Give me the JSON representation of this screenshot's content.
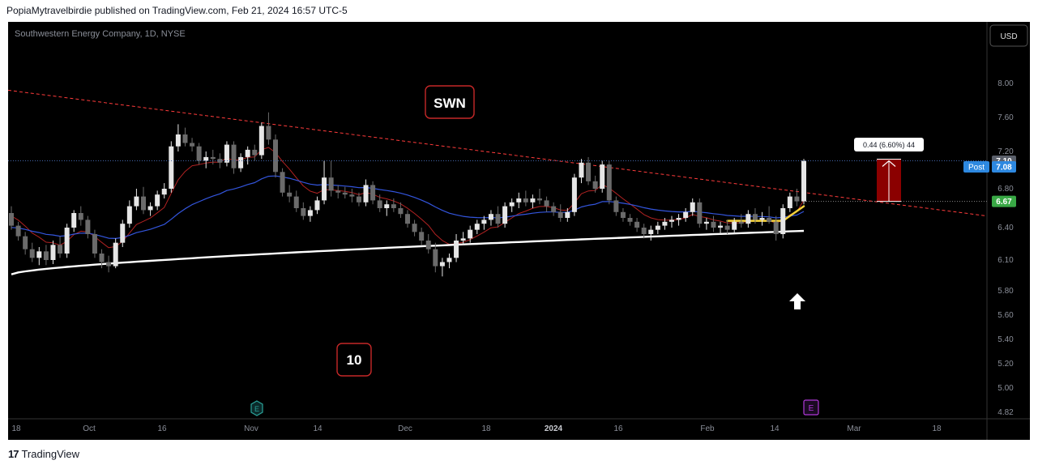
{
  "header": {
    "text": "PopiaMytravelbirdie published on TradingView.com, Feb 21, 2024 16:57 UTC-5"
  },
  "footer": {
    "logo": "17",
    "brand": "TradingView"
  },
  "chart": {
    "symbol_line": "Southwestern Energy Company, 1D, NYSE",
    "currency": "USD",
    "ticker_label": "SWN",
    "count_label": "10",
    "measure_label": "0.44 (6.60%) 44",
    "price_badge": "7.10",
    "post_label": "Post",
    "post_badge": "7.08",
    "base_badge": "6.67",
    "earnings_marker": "E"
  },
  "chart_data": {
    "type": "candlestick",
    "price_axis": {
      "ticks": [
        "8.00",
        "7.60",
        "7.20",
        "6.80",
        "6.40",
        "6.10",
        "5.80",
        "5.60",
        "5.40",
        "5.20",
        "5.00",
        "4.82"
      ]
    },
    "time_axis": {
      "ticks": [
        "18",
        "Oct",
        "16",
        "Nov",
        "14",
        "Dec",
        "18",
        "2024",
        "16",
        "Feb",
        "14",
        "Mar",
        "18"
      ]
    },
    "colors": {
      "up": "#e6e6e6",
      "down": "#6b6b6b",
      "trend": "#ff3b3b",
      "ema_short": "#b22222",
      "ema_mid": "#3355dd",
      "ema_long": "#ffffff",
      "highlight": "#f5d23b",
      "measure_box": "#8b0000",
      "post_badge": "#2d88e0",
      "base_badge": "#39a845"
    },
    "candles": [
      [
        6.55,
        6.62,
        6.38,
        6.42
      ],
      [
        6.42,
        6.46,
        6.28,
        6.32
      ],
      [
        6.32,
        6.36,
        6.15,
        6.2
      ],
      [
        6.2,
        6.26,
        6.08,
        6.12
      ],
      [
        6.12,
        6.22,
        6.05,
        6.18
      ],
      [
        6.18,
        6.24,
        6.05,
        6.1
      ],
      [
        6.1,
        6.28,
        6.06,
        6.24
      ],
      [
        6.24,
        6.32,
        6.12,
        6.16
      ],
      [
        6.16,
        6.44,
        6.12,
        6.4
      ],
      [
        6.4,
        6.58,
        6.36,
        6.55
      ],
      [
        6.55,
        6.62,
        6.42,
        6.48
      ],
      [
        6.48,
        6.52,
        6.3,
        6.34
      ],
      [
        6.34,
        6.38,
        6.12,
        6.16
      ],
      [
        6.16,
        6.2,
        6.02,
        6.08
      ],
      [
        6.08,
        6.14,
        5.98,
        6.04
      ],
      [
        6.04,
        6.3,
        6.02,
        6.26
      ],
      [
        6.26,
        6.48,
        6.22,
        6.44
      ],
      [
        6.44,
        6.68,
        6.4,
        6.62
      ],
      [
        6.62,
        6.8,
        6.58,
        6.72
      ],
      [
        6.72,
        6.82,
        6.54,
        6.58
      ],
      [
        6.58,
        6.66,
        6.52,
        6.62
      ],
      [
        6.62,
        6.78,
        6.58,
        6.74
      ],
      [
        6.74,
        6.86,
        6.7,
        6.8
      ],
      [
        6.8,
        7.32,
        6.76,
        7.26
      ],
      [
        7.26,
        7.52,
        7.2,
        7.4
      ],
      [
        7.4,
        7.48,
        7.26,
        7.3
      ],
      [
        7.3,
        7.36,
        7.2,
        7.26
      ],
      [
        7.26,
        7.3,
        7.06,
        7.1
      ],
      [
        7.1,
        7.2,
        7.02,
        7.14
      ],
      [
        7.14,
        7.22,
        7.06,
        7.12
      ],
      [
        7.12,
        7.18,
        7.02,
        7.08
      ],
      [
        7.08,
        7.32,
        7.04,
        7.28
      ],
      [
        7.28,
        7.32,
        6.96,
        7.02
      ],
      [
        7.02,
        7.18,
        6.98,
        7.14
      ],
      [
        7.14,
        7.26,
        7.06,
        7.22
      ],
      [
        7.22,
        7.28,
        7.1,
        7.16
      ],
      [
        7.16,
        7.54,
        7.12,
        7.5
      ],
      [
        7.5,
        7.66,
        7.28,
        7.34
      ],
      [
        7.34,
        7.4,
        6.92,
        6.98
      ],
      [
        6.98,
        7.02,
        6.72,
        6.76
      ],
      [
        6.76,
        6.84,
        6.66,
        6.72
      ],
      [
        6.72,
        6.78,
        6.56,
        6.6
      ],
      [
        6.6,
        6.66,
        6.48,
        6.52
      ],
      [
        6.52,
        6.62,
        6.46,
        6.58
      ],
      [
        6.58,
        6.72,
        6.54,
        6.68
      ],
      [
        6.68,
        7.1,
        6.64,
        6.92
      ],
      [
        6.92,
        7.1,
        6.72,
        6.78
      ],
      [
        6.78,
        6.84,
        6.7,
        6.76
      ],
      [
        6.76,
        6.82,
        6.7,
        6.74
      ],
      [
        6.74,
        6.8,
        6.66,
        6.72
      ],
      [
        6.72,
        6.76,
        6.62,
        6.66
      ],
      [
        6.66,
        6.9,
        6.62,
        6.84
      ],
      [
        6.84,
        6.88,
        6.64,
        6.68
      ],
      [
        6.68,
        6.74,
        6.56,
        6.6
      ],
      [
        6.6,
        6.68,
        6.52,
        6.64
      ],
      [
        6.64,
        6.7,
        6.56,
        6.6
      ],
      [
        6.6,
        6.66,
        6.5,
        6.54
      ],
      [
        6.54,
        6.58,
        6.4,
        6.44
      ],
      [
        6.44,
        6.48,
        6.32,
        6.36
      ],
      [
        6.36,
        6.4,
        6.24,
        6.28
      ],
      [
        6.28,
        6.34,
        6.16,
        6.2
      ],
      [
        6.2,
        6.26,
        5.98,
        6.04
      ],
      [
        6.04,
        6.12,
        5.94,
        6.08
      ],
      [
        6.08,
        6.16,
        6.02,
        6.12
      ],
      [
        6.12,
        6.34,
        6.08,
        6.28
      ],
      [
        6.28,
        6.36,
        6.24,
        6.3
      ],
      [
        6.3,
        6.42,
        6.26,
        6.38
      ],
      [
        6.38,
        6.48,
        6.34,
        6.44
      ],
      [
        6.44,
        6.52,
        6.38,
        6.48
      ],
      [
        6.48,
        6.58,
        6.42,
        6.54
      ],
      [
        6.54,
        6.62,
        6.4,
        6.44
      ],
      [
        6.44,
        6.66,
        6.4,
        6.62
      ],
      [
        6.62,
        6.7,
        6.56,
        6.66
      ],
      [
        6.66,
        6.76,
        6.6,
        6.7
      ],
      [
        6.7,
        6.78,
        6.62,
        6.66
      ],
      [
        6.66,
        6.74,
        6.6,
        6.7
      ],
      [
        6.7,
        6.8,
        6.64,
        6.68
      ],
      [
        6.68,
        6.72,
        6.56,
        6.62
      ],
      [
        6.62,
        6.66,
        6.52,
        6.56
      ],
      [
        6.56,
        6.64,
        6.46,
        6.5
      ],
      [
        6.5,
        6.6,
        6.46,
        6.56
      ],
      [
        6.56,
        6.96,
        6.52,
        6.92
      ],
      [
        6.92,
        7.12,
        6.86,
        7.08
      ],
      [
        7.08,
        7.14,
        6.84,
        6.88
      ],
      [
        6.88,
        6.94,
        6.76,
        6.8
      ],
      [
        6.8,
        7.1,
        6.76,
        7.06
      ],
      [
        7.06,
        7.1,
        6.64,
        6.68
      ],
      [
        6.68,
        6.72,
        6.52,
        6.56
      ],
      [
        6.56,
        6.6,
        6.46,
        6.5
      ],
      [
        6.5,
        6.54,
        6.42,
        6.46
      ],
      [
        6.46,
        6.5,
        6.36,
        6.4
      ],
      [
        6.4,
        6.44,
        6.3,
        6.34
      ],
      [
        6.34,
        6.42,
        6.28,
        6.38
      ],
      [
        6.38,
        6.46,
        6.34,
        6.42
      ],
      [
        6.42,
        6.5,
        6.38,
        6.46
      ],
      [
        6.46,
        6.52,
        6.4,
        6.48
      ],
      [
        6.48,
        6.54,
        6.42,
        6.5
      ],
      [
        6.5,
        6.6,
        6.46,
        6.56
      ],
      [
        6.56,
        6.7,
        6.52,
        6.66
      ],
      [
        6.66,
        6.7,
        6.4,
        6.44
      ],
      [
        6.44,
        6.5,
        6.38,
        6.46
      ],
      [
        6.46,
        6.52,
        6.36,
        6.4
      ],
      [
        6.4,
        6.46,
        6.34,
        6.42
      ],
      [
        6.42,
        6.48,
        6.34,
        6.38
      ],
      [
        6.38,
        6.5,
        6.34,
        6.46
      ],
      [
        6.46,
        6.54,
        6.4,
        6.44
      ],
      [
        6.44,
        6.58,
        6.4,
        6.54
      ],
      [
        6.54,
        6.6,
        6.44,
        6.48
      ],
      [
        6.48,
        6.56,
        6.42,
        6.5
      ],
      [
        6.5,
        6.62,
        6.44,
        6.46
      ],
      [
        6.46,
        6.52,
        6.28,
        6.34
      ],
      [
        6.34,
        6.64,
        6.3,
        6.6
      ],
      [
        6.6,
        6.76,
        6.56,
        6.72
      ],
      [
        6.72,
        6.8,
        6.62,
        6.67
      ],
      [
        6.67,
        7.12,
        6.64,
        7.1
      ]
    ],
    "trendline": {
      "start": 7.92,
      "end": 6.52
    },
    "ema_short": {
      "start": 6.55,
      "end": 6.62
    },
    "ema_mid": {
      "start": 6.4,
      "end": 6.5
    },
    "ema_long": {
      "start": 5.96,
      "end": 6.37
    }
  }
}
